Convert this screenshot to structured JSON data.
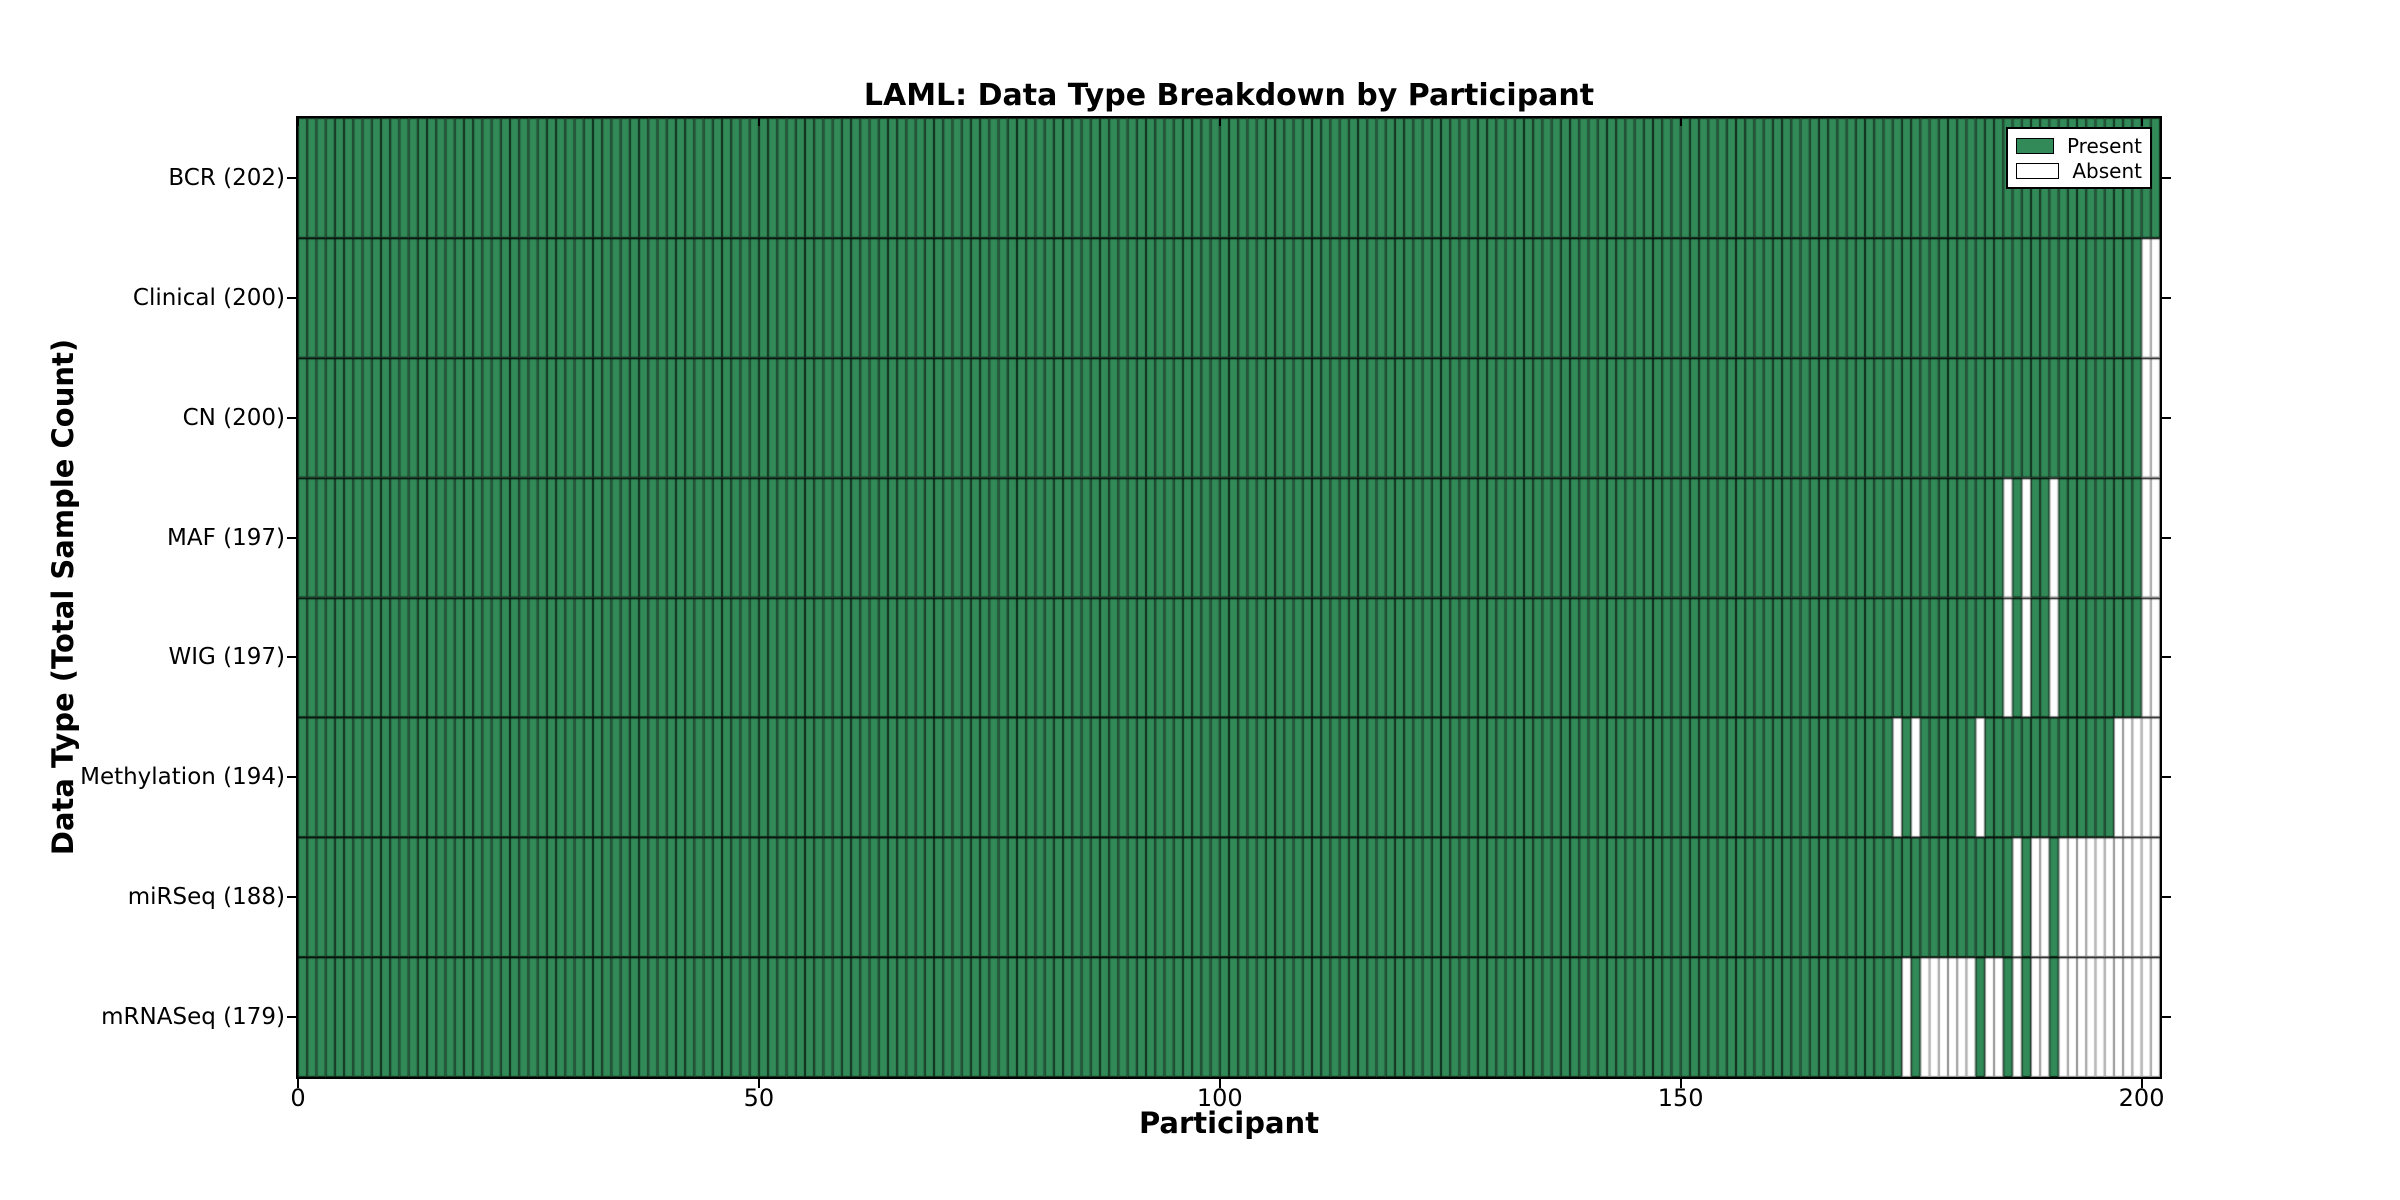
{
  "chart_data": {
    "type": "heatmap",
    "title": "LAML: Data Type Breakdown by Participant",
    "xlabel": "Participant",
    "ylabel": "Data Type (Total Sample Count)",
    "x_ticks": [
      0,
      50,
      100,
      150,
      200
    ],
    "x_range": [
      0,
      202
    ],
    "n_participants": 202,
    "legend_entries": [
      "Present",
      "Absent"
    ],
    "legend_position": "upper right",
    "grid": false,
    "colors": {
      "present": "#318a57",
      "absent": "#ffffff",
      "present_cell_edge": "rgba(0,0,0,0.70)",
      "absent_cell_edge": "#8c8c8c",
      "row_separator": "rgba(0,0,0,0.85)",
      "frame": "#000000"
    },
    "rows": [
      {
        "label": "BCR (202)",
        "data_type": "BCR",
        "total_samples": 202,
        "absent_participants": []
      },
      {
        "label": "Clinical (200)",
        "data_type": "Clinical",
        "total_samples": 200,
        "absent_participants": [
          200,
          201
        ]
      },
      {
        "label": "CN (200)",
        "data_type": "CN",
        "total_samples": 200,
        "absent_participants": [
          200,
          201
        ]
      },
      {
        "label": "MAF (197)",
        "data_type": "MAF",
        "total_samples": 197,
        "absent_participants": [
          185,
          187,
          190,
          200,
          201
        ]
      },
      {
        "label": "WIG (197)",
        "data_type": "WIG",
        "total_samples": 197,
        "absent_participants": [
          185,
          187,
          190,
          200,
          201
        ]
      },
      {
        "label": "Methylation (194)",
        "data_type": "Methylation",
        "total_samples": 194,
        "absent_participants": [
          173,
          175,
          182,
          197,
          198,
          199,
          200,
          201
        ]
      },
      {
        "label": "miRSeq (188)",
        "data_type": "miRSeq",
        "total_samples": 188,
        "absent_participants": [
          186,
          188,
          189,
          191,
          192,
          193,
          194,
          195,
          196,
          197,
          198,
          199,
          200,
          201
        ]
      },
      {
        "label": "mRNASeq (179)",
        "data_type": "mRNASeq",
        "total_samples": 179,
        "absent_participants": [
          174,
          176,
          177,
          178,
          179,
          180,
          181,
          183,
          184,
          186,
          188,
          189,
          191,
          192,
          193,
          194,
          195,
          196,
          197,
          198,
          199,
          200,
          201
        ]
      }
    ]
  }
}
